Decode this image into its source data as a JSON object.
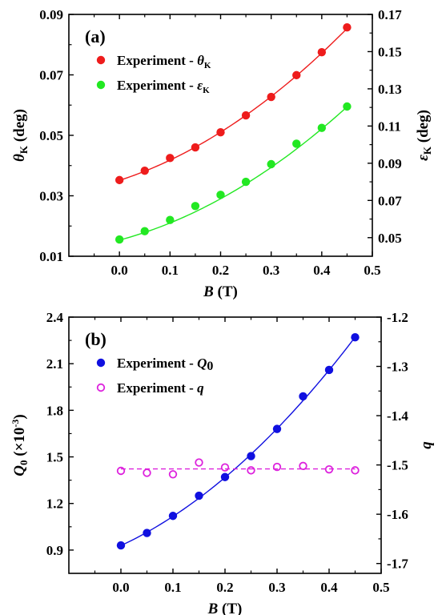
{
  "chart_data": [
    {
      "type": "scatter",
      "panel_label": "(a)",
      "xlabel": {
        "sym": "B",
        "rest": " (T)"
      },
      "ylabel": {
        "sym": "θ",
        "sub": "K",
        "rest": " (deg)"
      },
      "y2label": {
        "sym": "ε",
        "sub": "K",
        "rest": " (deg)"
      },
      "xlim": [
        -0.1,
        0.5
      ],
      "ylim": [
        0.01,
        0.09
      ],
      "y2lim": [
        0.04,
        0.17
      ],
      "x_ticks": [
        0.0,
        0.1,
        0.2,
        0.3,
        0.4,
        0.5
      ],
      "x_tick_labels": [
        "0.0",
        "0.1",
        "0.2",
        "0.3",
        "0.4",
        "0.5"
      ],
      "y_ticks": [
        0.01,
        0.03,
        0.05,
        0.07,
        0.09
      ],
      "y_tick_labels": [
        "0.01",
        "0.03",
        "0.05",
        "0.07",
        "0.09"
      ],
      "y2_ticks": [
        0.05,
        0.07,
        0.09,
        0.11,
        0.13,
        0.15,
        0.17
      ],
      "y2_tick_labels": [
        "0.05",
        "0.07",
        "0.09",
        "0.11",
        "0.13",
        "0.15",
        "0.17"
      ],
      "legend_position": "top-left",
      "series": [
        {
          "name": "Experiment - θK",
          "legend": {
            "text": "Experiment - ",
            "sym": "θ",
            "sub": "K"
          },
          "axis": "left",
          "marker": "filled-circle",
          "color": "#ee1c1c",
          "x": [
            0.0,
            0.05,
            0.1,
            0.15,
            0.2,
            0.25,
            0.3,
            0.35,
            0.4,
            0.45
          ],
          "y": [
            0.0352,
            0.0383,
            0.0425,
            0.046,
            0.051,
            0.0566,
            0.0627,
            0.0699,
            0.0775,
            0.0857
          ]
        },
        {
          "name": "Experiment - εK",
          "legend": {
            "text": "Experiment - ",
            "sym": "ε",
            "sub": "K"
          },
          "axis": "right",
          "marker": "filled-circle",
          "color": "#22e822",
          "x": [
            0.0,
            0.05,
            0.1,
            0.15,
            0.2,
            0.25,
            0.3,
            0.35,
            0.4,
            0.45
          ],
          "y": [
            0.049,
            0.0535,
            0.0595,
            0.067,
            0.073,
            0.08,
            0.0895,
            0.1005,
            0.109,
            0.1205
          ]
        }
      ],
      "fits": [
        {
          "axis": "left",
          "color": "#ee1c1c",
          "style": "solid",
          "fn": "quadratic",
          "coef": [
            0.0351,
            0.0542,
            0.1277
          ]
        },
        {
          "axis": "right",
          "color": "#22e822",
          "style": "solid",
          "fn": "quadratic",
          "coef": [
            0.0487,
            0.0725,
            0.1925
          ]
        }
      ]
    },
    {
      "type": "scatter",
      "panel_label": "(b)",
      "xlabel": {
        "sym": "B",
        "rest": " (T)"
      },
      "ylabel": {
        "sym": "Q",
        "sub": "0",
        "rest": " (×10",
        "sup": "-3",
        "tail": ")"
      },
      "y2label": {
        "sym": "q"
      },
      "xlim": [
        -0.1,
        0.5
      ],
      "ylim": [
        0.75,
        2.4
      ],
      "y2lim": [
        -1.72,
        -1.2
      ],
      "x_ticks": [
        0.0,
        0.1,
        0.2,
        0.3,
        0.4,
        0.5
      ],
      "x_tick_labels": [
        "0.0",
        "0.1",
        "0.2",
        "0.3",
        "0.4",
        "0.5"
      ],
      "y_ticks": [
        0.9,
        1.2,
        1.5,
        1.8,
        2.1,
        2.4
      ],
      "y_tick_labels": [
        "0.9",
        "1.2",
        "1.5",
        "1.8",
        "2.1",
        "2.4"
      ],
      "y2_ticks": [
        -1.7,
        -1.6,
        -1.5,
        -1.4,
        -1.3,
        -1.2
      ],
      "y2_tick_labels": [
        "-1.7",
        "-1.6",
        "-1.5",
        "-1.4",
        "-1.3",
        "-1.2"
      ],
      "legend_position": "top-left",
      "series": [
        {
          "name": "Experiment - Q0",
          "legend": {
            "text": "Experiment - ",
            "sym": "Q",
            "sub": "0"
          },
          "axis": "left",
          "marker": "filled-circle",
          "color": "#1010e0",
          "x": [
            0.0,
            0.05,
            0.1,
            0.15,
            0.2,
            0.25,
            0.3,
            0.35,
            0.4,
            0.45
          ],
          "y": [
            0.93,
            1.01,
            1.12,
            1.25,
            1.37,
            1.505,
            1.68,
            1.89,
            2.06,
            2.27
          ]
        },
        {
          "name": "Experiment - q",
          "legend": {
            "text": "Experiment - ",
            "sym": "q"
          },
          "axis": "right",
          "marker": "open-circle",
          "color": "#dd22dd",
          "x": [
            0.0,
            0.05,
            0.1,
            0.15,
            0.2,
            0.25,
            0.3,
            0.35,
            0.4,
            0.45
          ],
          "y": [
            -1.512,
            -1.516,
            -1.519,
            -1.495,
            -1.505,
            -1.511,
            -1.504,
            -1.502,
            -1.509,
            -1.511
          ]
        }
      ],
      "fits": [
        {
          "axis": "left",
          "color": "#1010e0",
          "style": "solid",
          "fn": "quadratic",
          "coef": [
            0.9286,
            1.5659,
            3.1502
          ]
        },
        {
          "axis": "right",
          "color": "#dd22dd",
          "style": "dashed",
          "fn": "constant",
          "coef": [
            -1.508
          ]
        }
      ]
    }
  ]
}
